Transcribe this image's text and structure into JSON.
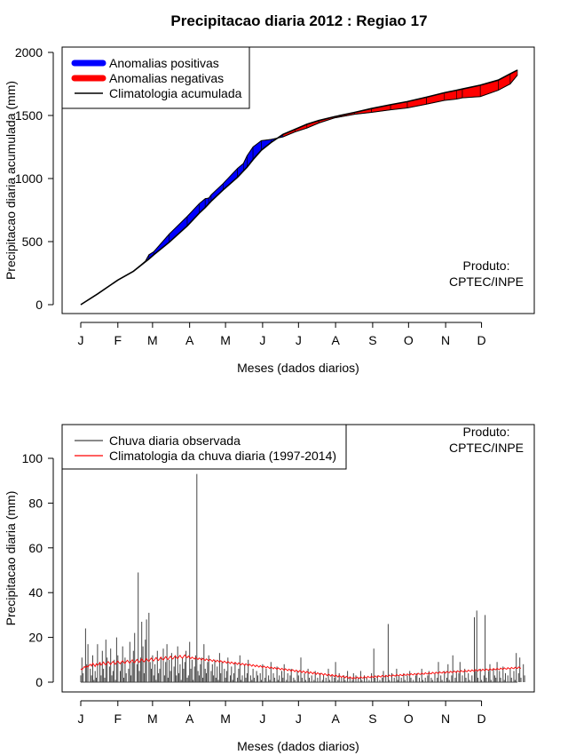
{
  "title": "Precipitacao diaria 2012 : Regiao 17",
  "chart_data": [
    {
      "type": "area",
      "name": "accumulated",
      "ylabel": "Precipitacao diaria acumulada (mm)",
      "xlabel": "Meses (dados diarios)",
      "ylim": [
        0,
        2000
      ],
      "yticks": [
        0,
        500,
        1000,
        1500,
        2000
      ],
      "months": [
        "J",
        "F",
        "M",
        "A",
        "M",
        "J",
        "J",
        "A",
        "S",
        "O",
        "N",
        "D"
      ],
      "legend": {
        "position": "top-left",
        "entries": [
          "Anomalias positivas",
          "Anomalias negativas",
          "Climatologia acumulada"
        ]
      },
      "note": [
        "Produto:",
        "CPTEC/INPE"
      ],
      "colors": {
        "positive": "#0000ff",
        "negative": "#ff0000",
        "line": "#000000"
      },
      "day": [
        1,
        15,
        32,
        45,
        55,
        58,
        62,
        75,
        90,
        100,
        105,
        108,
        110,
        120,
        132,
        137,
        140,
        145,
        152,
        160,
        170,
        180,
        190,
        200,
        213,
        230,
        244,
        260,
        274,
        290,
        305,
        315,
        320,
        335,
        350,
        360,
        366
      ],
      "climatology": [
        0,
        85,
        195,
        265,
        340,
        362,
        395,
        495,
        625,
        725,
        770,
        800,
        820,
        910,
        1010,
        1060,
        1090,
        1150,
        1225,
        1285,
        1350,
        1390,
        1430,
        1460,
        1490,
        1525,
        1555,
        1585,
        1610,
        1645,
        1680,
        1700,
        1710,
        1740,
        1780,
        1830,
        1860
      ],
      "observed": [
        0,
        85,
        195,
        265,
        345,
        395,
        420,
        560,
        700,
        800,
        840,
        845,
        870,
        960,
        1080,
        1120,
        1180,
        1250,
        1300,
        1310,
        1330,
        1370,
        1400,
        1440,
        1480,
        1510,
        1525,
        1545,
        1560,
        1590,
        1620,
        1630,
        1640,
        1650,
        1700,
        1750,
        1820
      ]
    },
    {
      "type": "bar",
      "name": "daily",
      "ylabel": "Precipitacao diaria (mm)",
      "xlabel": "Meses (dados diarios)",
      "ylim": [
        0,
        115
      ],
      "yticks": [
        0,
        20,
        40,
        60,
        80,
        100
      ],
      "months": [
        "J",
        "F",
        "M",
        "A",
        "M",
        "J",
        "J",
        "A",
        "S",
        "O",
        "N",
        "D"
      ],
      "legend": {
        "position": "top-left",
        "entries": [
          "Chuva diaria observada",
          "Climatologia da chuva diaria (1997-2014)"
        ]
      },
      "note": [
        "Produto:",
        "CPTEC/INPE"
      ],
      "colors": {
        "bars": "#444444",
        "climatology": "#ff0000"
      },
      "observed_daily": [
        3,
        11,
        4,
        0,
        24,
        8,
        17,
        0,
        6,
        3,
        12,
        1,
        5,
        2,
        17,
        0,
        9,
        3,
        14,
        6,
        2,
        19,
        11,
        0,
        7,
        15,
        3,
        5,
        10,
        1,
        20,
        12,
        0,
        5,
        9,
        16,
        2,
        11,
        4,
        0,
        6,
        18,
        3,
        9,
        14,
        22,
        0,
        8,
        49,
        5,
        11,
        27,
        16,
        4,
        19,
        28,
        0,
        31,
        9,
        6,
        12,
        3,
        8,
        1,
        14,
        4,
        6,
        11,
        0,
        15,
        3,
        9,
        17,
        2,
        10,
        5,
        13,
        0,
        7,
        12,
        3,
        16,
        4,
        8,
        1,
        11,
        6,
        9,
        14,
        2,
        3,
        18,
        6,
        10,
        1,
        7,
        12,
        93,
        5,
        3,
        8,
        11,
        2,
        17,
        6,
        4,
        9,
        12,
        0,
        5,
        8,
        3,
        10,
        2,
        7,
        1,
        13,
        4,
        9,
        0,
        6,
        2,
        5,
        11,
        0,
        3,
        7,
        1,
        4,
        9,
        0,
        2,
        6,
        12,
        1,
        3,
        0,
        8,
        2,
        4,
        10,
        0,
        3,
        1,
        6,
        2,
        0,
        5,
        3,
        0,
        4,
        1,
        8,
        0,
        2,
        6,
        0,
        3,
        1,
        9,
        0,
        4,
        2,
        0,
        7,
        1,
        3,
        0,
        5,
        2,
        8,
        0,
        1,
        4,
        0,
        3,
        6,
        0,
        2,
        1,
        0,
        5,
        3,
        0,
        11,
        2,
        0,
        4,
        1,
        0,
        6,
        2,
        0,
        3,
        0,
        1,
        5,
        0,
        2,
        0,
        4,
        0,
        1,
        3,
        0,
        2,
        0,
        6,
        1,
        0,
        3,
        0,
        2,
        9,
        0,
        1,
        4,
        0,
        2,
        0,
        3,
        1,
        0,
        5,
        0,
        2,
        0,
        1,
        4,
        0,
        3,
        0,
        2,
        0,
        5,
        1,
        0,
        3,
        0,
        2,
        0,
        1,
        0,
        4,
        0,
        15,
        2,
        0,
        3,
        0,
        1,
        0,
        2,
        5,
        0,
        3,
        0,
        26,
        1,
        0,
        4,
        0,
        2,
        0,
        6,
        1,
        3,
        0,
        2,
        0,
        4,
        1,
        0,
        3,
        0,
        5,
        2,
        0,
        1,
        0,
        3,
        4,
        0,
        2,
        0,
        6,
        1,
        0,
        2,
        0,
        3,
        5,
        0,
        2,
        1,
        0,
        4,
        0,
        2,
        9,
        0,
        3,
        1,
        0,
        5,
        0,
        2,
        8,
        1,
        0,
        3,
        12,
        0,
        2,
        5,
        0,
        4,
        9,
        0,
        3,
        0,
        6,
        2,
        0,
        4,
        1,
        0,
        3,
        0,
        29,
        5,
        32,
        2,
        0,
        6,
        1,
        0,
        3,
        30,
        2,
        0,
        5,
        8,
        1,
        0,
        6,
        3,
        2,
        9,
        0,
        5,
        2,
        0,
        7,
        1,
        4,
        0,
        3,
        0,
        6,
        2,
        0,
        5,
        1,
        13,
        0,
        4,
        11,
        2,
        0,
        8,
        3
      ],
      "climatology_daily": [
        6,
        5.5,
        6.2,
        7,
        6.5,
        7.2,
        6.8,
        7.5,
        8,
        7.2,
        8.5,
        7.8,
        7,
        8.2,
        7.5,
        8,
        8.8,
        7.6,
        8.3,
        9,
        8.1,
        7.7,
        8.6,
        9.2,
        8.4,
        7.9,
        8.7,
        9.3,
        8.5,
        8,
        8.9,
        9.5,
        8.7,
        8.2,
        9,
        9.6,
        8.8,
        8.4,
        9.2,
        9.8,
        9,
        8.5,
        9.3,
        10,
        9.1,
        8.7,
        9.5,
        10.2,
        9.3,
        8.9,
        9.7,
        10.4,
        9.5,
        9.1,
        9.9,
        10.6,
        9.7,
        9.3,
        10.1,
        10.8,
        9.9,
        9.5,
        10.3,
        11,
        10.1,
        9.7,
        10.5,
        11.2,
        10.3,
        9.9,
        10.7,
        11.4,
        10.5,
        10.1,
        10.9,
        11.6,
        10.7,
        10.3,
        11.1,
        11.8,
        10.9,
        10.5,
        11.3,
        12,
        11.1,
        10.7,
        11.5,
        12.2,
        11.3,
        10.9,
        11.7,
        11,
        10.5,
        11.2,
        10.8,
        10.3,
        11,
        10.6,
        10.1,
        10.8,
        10.4,
        9.9,
        10.6,
        10.2,
        9.7,
        10.4,
        10,
        9.5,
        10.2,
        9.8,
        9.3,
        10,
        9.6,
        9.1,
        9.8,
        9.4,
        8.9,
        9.6,
        9.2,
        8.7,
        9.4,
        9,
        8.5,
        9.2,
        8.8,
        8.3,
        9,
        8.6,
        8.1,
        8.8,
        8.4,
        7.9,
        8.6,
        8.2,
        7.7,
        8.4,
        8,
        7.5,
        8.2,
        7.8,
        7.3,
        8,
        7.6,
        7.1,
        7.8,
        7.4,
        6.9,
        7.6,
        7.2,
        6.7,
        7.4,
        7,
        6.5,
        7.2,
        6.8,
        6.3,
        7,
        6.6,
        6.1,
        6.8,
        6.4,
        5.9,
        6.6,
        6.2,
        5.7,
        6.4,
        6,
        5.5,
        6.2,
        5.8,
        5.3,
        6,
        5.6,
        5.1,
        5.8,
        5.4,
        4.9,
        5.6,
        5.2,
        4.7,
        5.4,
        5,
        4.5,
        5.2,
        4.8,
        4.3,
        5,
        4.6,
        4.1,
        4.8,
        4.4,
        3.9,
        4.6,
        4.2,
        3.7,
        4.4,
        4,
        3.5,
        4.2,
        3.8,
        3.3,
        4,
        3.6,
        3.1,
        3.8,
        3.4,
        2.9,
        3.6,
        3.2,
        2.7,
        3.4,
        3,
        2.5,
        3.2,
        2.8,
        2.3,
        3,
        2.6,
        2.1,
        2.8,
        2.4,
        1.9,
        2.6,
        2.2,
        1.7,
        2.4,
        2,
        1.5,
        2.2,
        1.8,
        1.6,
        2.3,
        1.9,
        1.7,
        2.4,
        2,
        1.8,
        2.5,
        2.1,
        1.9,
        2.6,
        2.2,
        2,
        2.7,
        2.3,
        2.1,
        2.8,
        2.4,
        2.2,
        2.9,
        2.5,
        2.3,
        3,
        2.6,
        2.4,
        3.1,
        2.7,
        2.5,
        3.2,
        2.8,
        2.6,
        3.3,
        2.9,
        2.7,
        3.4,
        3,
        2.8,
        3.5,
        3.1,
        2.9,
        3.6,
        3.2,
        3,
        3.7,
        3.3,
        3.1,
        3.8,
        3.4,
        3.2,
        3.9,
        3.5,
        3.3,
        4,
        3.6,
        3.4,
        4.1,
        3.7,
        3.5,
        4.2,
        3.8,
        3.6,
        4.3,
        3.9,
        3.7,
        4.4,
        4,
        3.8,
        4.5,
        4.1,
        3.9,
        4.6,
        4.2,
        4,
        4.7,
        4.3,
        4.1,
        4.8,
        4.4,
        4.2,
        4.9,
        4.5,
        4.3,
        5,
        4.6,
        4.4,
        5.1,
        4.7,
        4.5,
        5.2,
        4.8,
        4.6,
        5.3,
        4.9,
        4.7,
        5.4,
        5,
        4.8,
        5.5,
        5.1,
        4.9,
        5.6,
        5.2,
        5,
        5.7,
        5.3,
        5.1,
        5.8,
        5.4,
        5.2,
        5.9,
        5.5,
        5.3,
        6,
        5.6,
        5.4,
        6.1,
        5.7,
        5.5,
        6.2,
        5.8,
        5.6,
        6.3,
        5.9,
        5.7,
        6.4,
        6,
        5.8,
        6.5,
        6.1,
        5.9,
        6.6,
        6.2,
        6,
        6.7,
        6.3,
        6.1,
        6.8,
        6.4,
        6.2
      ]
    }
  ]
}
